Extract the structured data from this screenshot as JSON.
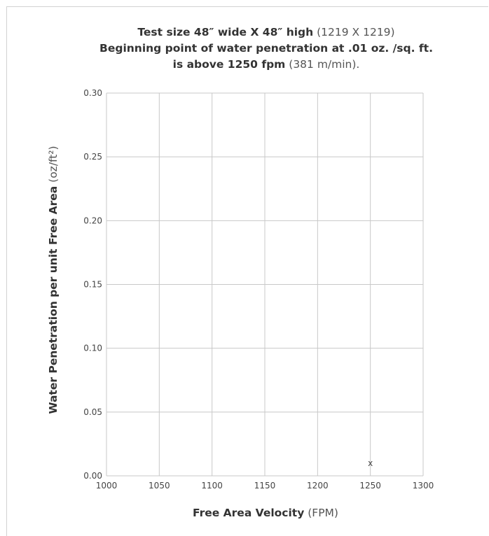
{
  "chart_data": {
    "type": "scatter",
    "title_line1_bold": "Test size 48″ wide X 48″ high",
    "title_line1_light": "(1219 X 1219)",
    "title_line2_bold": "Beginning point of water penetration at .01 oz. /sq. ft.",
    "title_line3_bold": "is above 1250 fpm",
    "title_line3_light": "(381 m/min).",
    "xlabel_bold": "Free Area Velocity",
    "xlabel_light": "(FPM)",
    "ylabel_bold": "Water Penetration per unit Free Area",
    "ylabel_light": "(oz/ft²)",
    "xlim": [
      1000,
      1300
    ],
    "ylim": [
      0,
      0.3
    ],
    "x_ticks": [
      "1000",
      "1050",
      "1100",
      "1150",
      "1200",
      "1250",
      "1300"
    ],
    "y_ticks": [
      "0.00",
      "0.05",
      "0.10",
      "0.15",
      "0.20",
      "0.25",
      "0.30"
    ],
    "grid": true,
    "series": [
      {
        "marker": "x",
        "points": [
          {
            "x": 1250,
            "y": 0.01,
            "label": "x"
          }
        ]
      }
    ],
    "colors": {
      "grid": "#c8c8c8",
      "text": "#333333"
    }
  }
}
